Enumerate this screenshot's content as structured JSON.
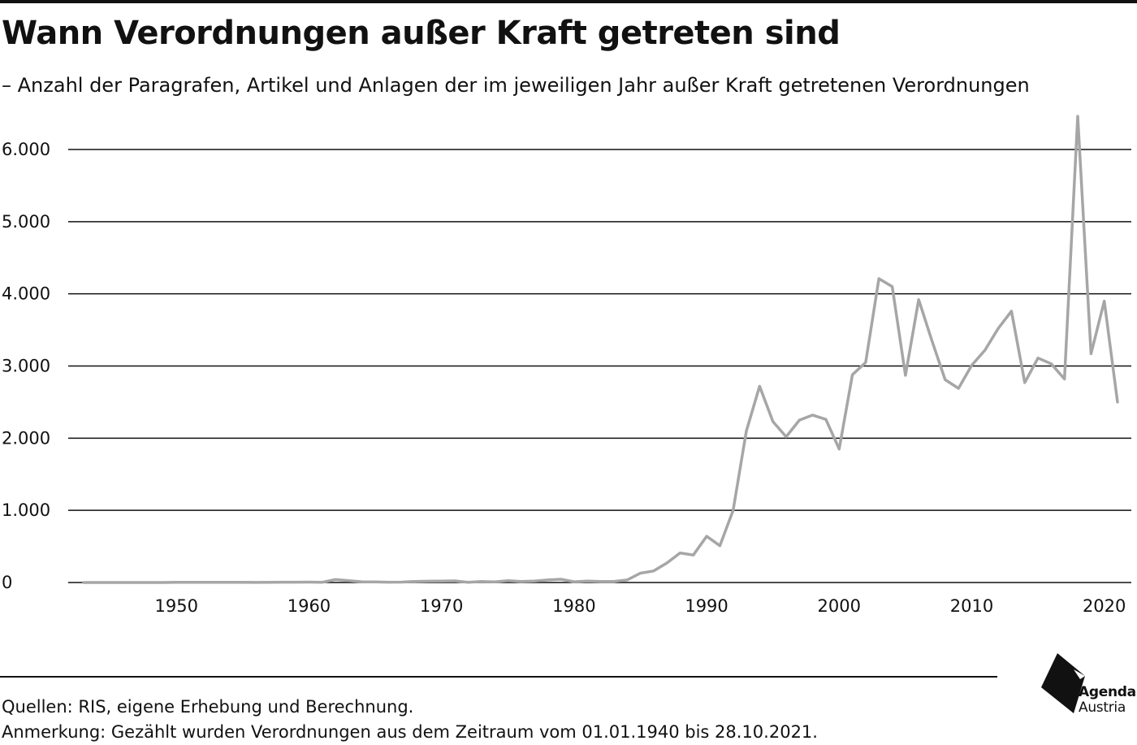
{
  "header": {
    "title": "Wann Verordnungen außer Kraft getreten sind",
    "subtitle": "– Anzahl der Paragrafen, Artikel und Anlagen der im jeweiligen Jahr außer Kraft getretenen Verordnungen"
  },
  "footer": {
    "sources": "Quellen: RIS, eigene Erhebung und Berechnung.",
    "note": "Anmerkung: Gezählt wurden Verordnungen aus dem Zeitraum vom 01.01.1940 bis 28.10.2021."
  },
  "logo": {
    "name": "Agenda",
    "sub": "Austria",
    "icon": "agenda-austria-logo"
  },
  "colors": {
    "line": "#a6a6a6",
    "grid": "#111111",
    "text": "#111111"
  },
  "chart_data": {
    "type": "line",
    "title": "Wann Verordnungen außer Kraft getreten sind",
    "subtitle": "– Anzahl der Paragrafen, Artikel und Anlagen der im jeweiligen Jahr außer Kraft getretenen Verordnungen",
    "xlabel": "",
    "ylabel": "",
    "xlim": [
      1943,
      2021
    ],
    "ylim": [
      0,
      6500
    ],
    "x_ticks": [
      1950,
      1960,
      1970,
      1980,
      1990,
      2000,
      2010,
      2020
    ],
    "x_tick_labels": [
      "1950",
      "1960",
      "1970",
      "1980",
      "1990",
      "2000",
      "2010",
      "2020"
    ],
    "y_ticks": [
      0,
      1000,
      2000,
      3000,
      4000,
      5000,
      6000
    ],
    "y_tick_labels": [
      "0",
      "1.000",
      "2.000",
      "3.000",
      "4.000",
      "5.000",
      "6.000"
    ],
    "grid": "horizontal",
    "legend": "none",
    "series": [
      {
        "x": [
          1943,
          1944,
          1945,
          1946,
          1947,
          1948,
          1949,
          1950,
          1951,
          1952,
          1953,
          1954,
          1955,
          1956,
          1957,
          1958,
          1959,
          1960,
          1961,
          1962,
          1963,
          1964,
          1965,
          1966,
          1967,
          1968,
          1969,
          1970,
          1971,
          1972,
          1973,
          1974,
          1975,
          1976,
          1977,
          1978,
          1979,
          1980,
          1981,
          1982,
          1983,
          1984,
          1985,
          1986,
          1987,
          1988,
          1989,
          1990,
          1991,
          1992,
          1993,
          1994,
          1995,
          1996,
          1997,
          1998,
          1999,
          2000,
          2001,
          2002,
          2003,
          2004,
          2005,
          2006,
          2007,
          2008,
          2009,
          2010,
          2011,
          2012,
          2013,
          2014,
          2015,
          2016,
          2017,
          2018,
          2019,
          2020,
          2021
        ],
        "values": [
          0,
          0,
          0,
          0,
          0,
          0,
          0,
          2,
          2,
          3,
          2,
          2,
          2,
          1,
          2,
          5,
          4,
          6,
          3,
          40,
          25,
          10,
          8,
          5,
          6,
          15,
          18,
          20,
          22,
          2,
          15,
          8,
          25,
          15,
          20,
          35,
          45,
          10,
          20,
          15,
          15,
          35,
          130,
          160,
          270,
          410,
          380,
          640,
          510,
          1000,
          2100,
          2720,
          2230,
          2020,
          2250,
          2320,
          2260,
          1850,
          2880,
          3050,
          4210,
          4100,
          2870,
          3920,
          3350,
          2810,
          2690,
          3010,
          3220,
          3520,
          3760,
          2770,
          3110,
          3030,
          2820,
          6460,
          3170,
          3900,
          2500
        ]
      }
    ]
  }
}
